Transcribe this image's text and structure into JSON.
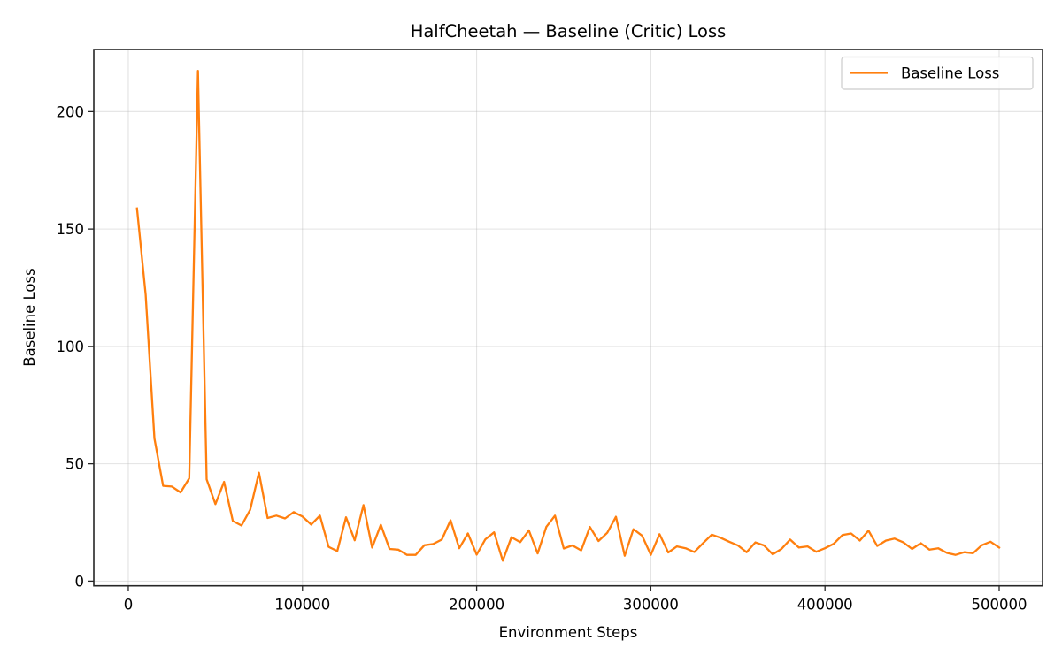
{
  "chart_data": {
    "type": "line",
    "title": "HalfCheetah — Baseline (Critic) Loss",
    "xlabel": "Environment Steps",
    "ylabel": "Baseline Loss",
    "xlim": [
      -19800,
      524900
    ],
    "ylim": [
      -2,
      226.5
    ],
    "xticks": [
      0,
      100000,
      200000,
      300000,
      400000,
      500000
    ],
    "xtick_labels": [
      "0",
      "100000",
      "200000",
      "300000",
      "400000",
      "500000"
    ],
    "yticks": [
      0,
      50,
      100,
      150,
      200
    ],
    "ytick_labels": [
      "0",
      "50",
      "100",
      "150",
      "200"
    ],
    "grid": true,
    "legend_position": "upper right",
    "series": [
      {
        "name": "Baseline Loss",
        "color": "#ff7f0e",
        "x": [
          5000,
          10000,
          15000,
          20000,
          25000,
          30000,
          35000,
          40000,
          45000,
          50000,
          55000,
          60000,
          65000,
          70000,
          75000,
          80000,
          85000,
          90000,
          95000,
          100000,
          105000,
          110000,
          115000,
          120000,
          125000,
          130000,
          135000,
          140000,
          145000,
          150000,
          155000,
          160000,
          165000,
          170000,
          175000,
          180000,
          185000,
          190000,
          195000,
          200000,
          205000,
          210000,
          215000,
          220000,
          225000,
          230000,
          235000,
          240000,
          245000,
          250000,
          255000,
          260000,
          265000,
          270000,
          275000,
          280000,
          285000,
          290000,
          295000,
          300000,
          305000,
          310000,
          315000,
          320000,
          325000,
          330000,
          335000,
          340000,
          345000,
          350000,
          355000,
          360000,
          365000,
          370000,
          375000,
          380000,
          385000,
          390000,
          395000,
          400000,
          405000,
          410000,
          415000,
          420000,
          425000,
          430000,
          435000,
          440000,
          445000,
          450000,
          455000,
          460000,
          465000,
          470000,
          475000,
          480000,
          485000,
          490000,
          495000,
          500000
        ],
        "values": [
          158.8,
          122,
          60.8,
          40.6,
          40.3,
          37.8,
          43.8,
          217.4,
          43.4,
          32.8,
          42.3,
          25.6,
          23.7,
          30.4,
          46.2,
          26.9,
          27.9,
          26.7,
          29.4,
          27.5,
          24.1,
          27.9,
          14.6,
          12.8,
          27.2,
          17.4,
          32.4,
          14.3,
          24,
          13.7,
          13.4,
          11.2,
          11.2,
          15.3,
          15.8,
          17.7,
          25.9,
          14,
          20.3,
          11.3,
          17.8,
          20.8,
          8.7,
          18.7,
          16.6,
          21.6,
          11.8,
          23.1,
          27.9,
          13.9,
          15.2,
          13.1,
          23.1,
          17.1,
          20.6,
          27.4,
          10.8,
          22.1,
          19.4,
          11.2,
          20,
          12.2,
          14.8,
          14,
          12.4,
          16.2,
          19.8,
          18.5,
          16.8,
          15.2,
          12.3,
          16.5,
          15.2,
          11.4,
          13.7,
          17.7,
          14.3,
          14.8,
          12.5,
          14,
          15.9,
          19.6,
          20.3,
          17.3,
          21.5,
          15,
          17.3,
          18.1,
          16.5,
          13.7,
          16.2,
          13.4,
          14,
          12,
          11.2,
          12.3,
          11.9,
          15.3,
          16.8,
          14.3
        ]
      }
    ]
  },
  "legend": {
    "label": "Baseline Loss"
  }
}
